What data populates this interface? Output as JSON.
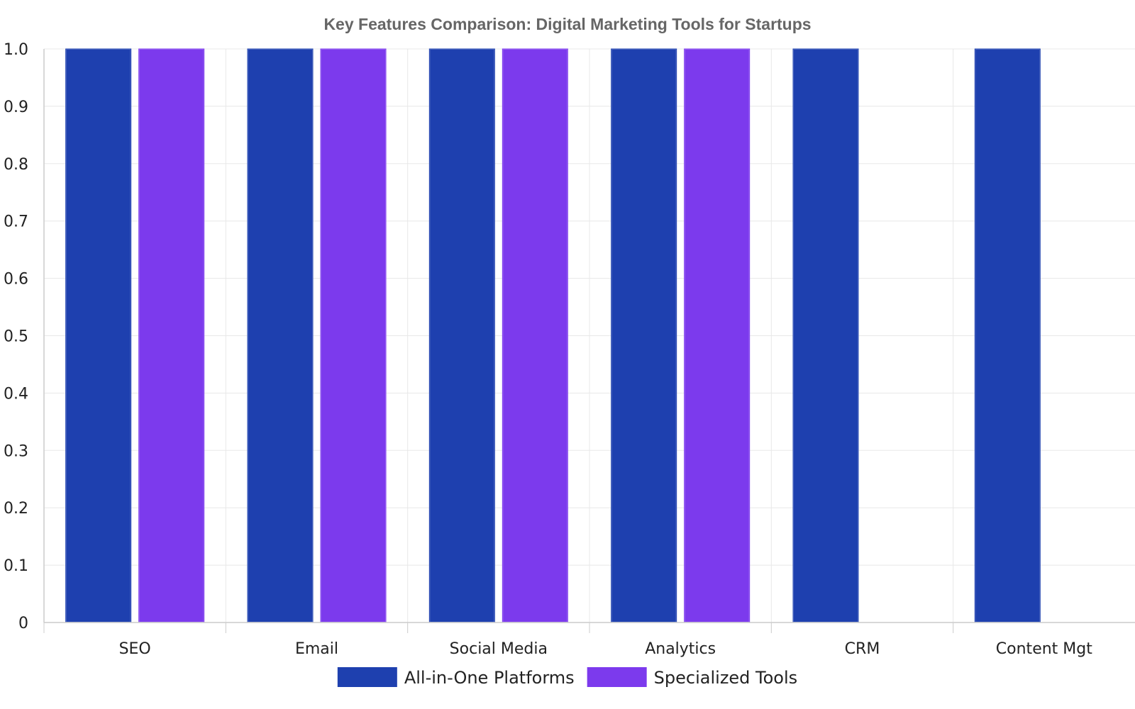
{
  "chart_data": {
    "type": "bar",
    "title": "Key Features Comparison: Digital Marketing Tools for Startups",
    "xlabel": "",
    "ylabel": "",
    "categories": [
      "SEO",
      "Email",
      "Social Media",
      "Analytics",
      "CRM",
      "Content Mgt"
    ],
    "series": [
      {
        "name": "All-in-One Platforms",
        "color": "#1e40af",
        "values": [
          1,
          1,
          1,
          1,
          1,
          1
        ]
      },
      {
        "name": "Specialized Tools",
        "color": "#7c3aed",
        "values": [
          1,
          1,
          1,
          1,
          0,
          0
        ]
      }
    ],
    "ylim": [
      0,
      1
    ],
    "yticks": [
      "0",
      "0.1",
      "0.2",
      "0.3",
      "0.4",
      "0.5",
      "0.6",
      "0.7",
      "0.8",
      "0.9",
      "1.0"
    ],
    "grid": true,
    "legend_position": "bottom-center"
  }
}
